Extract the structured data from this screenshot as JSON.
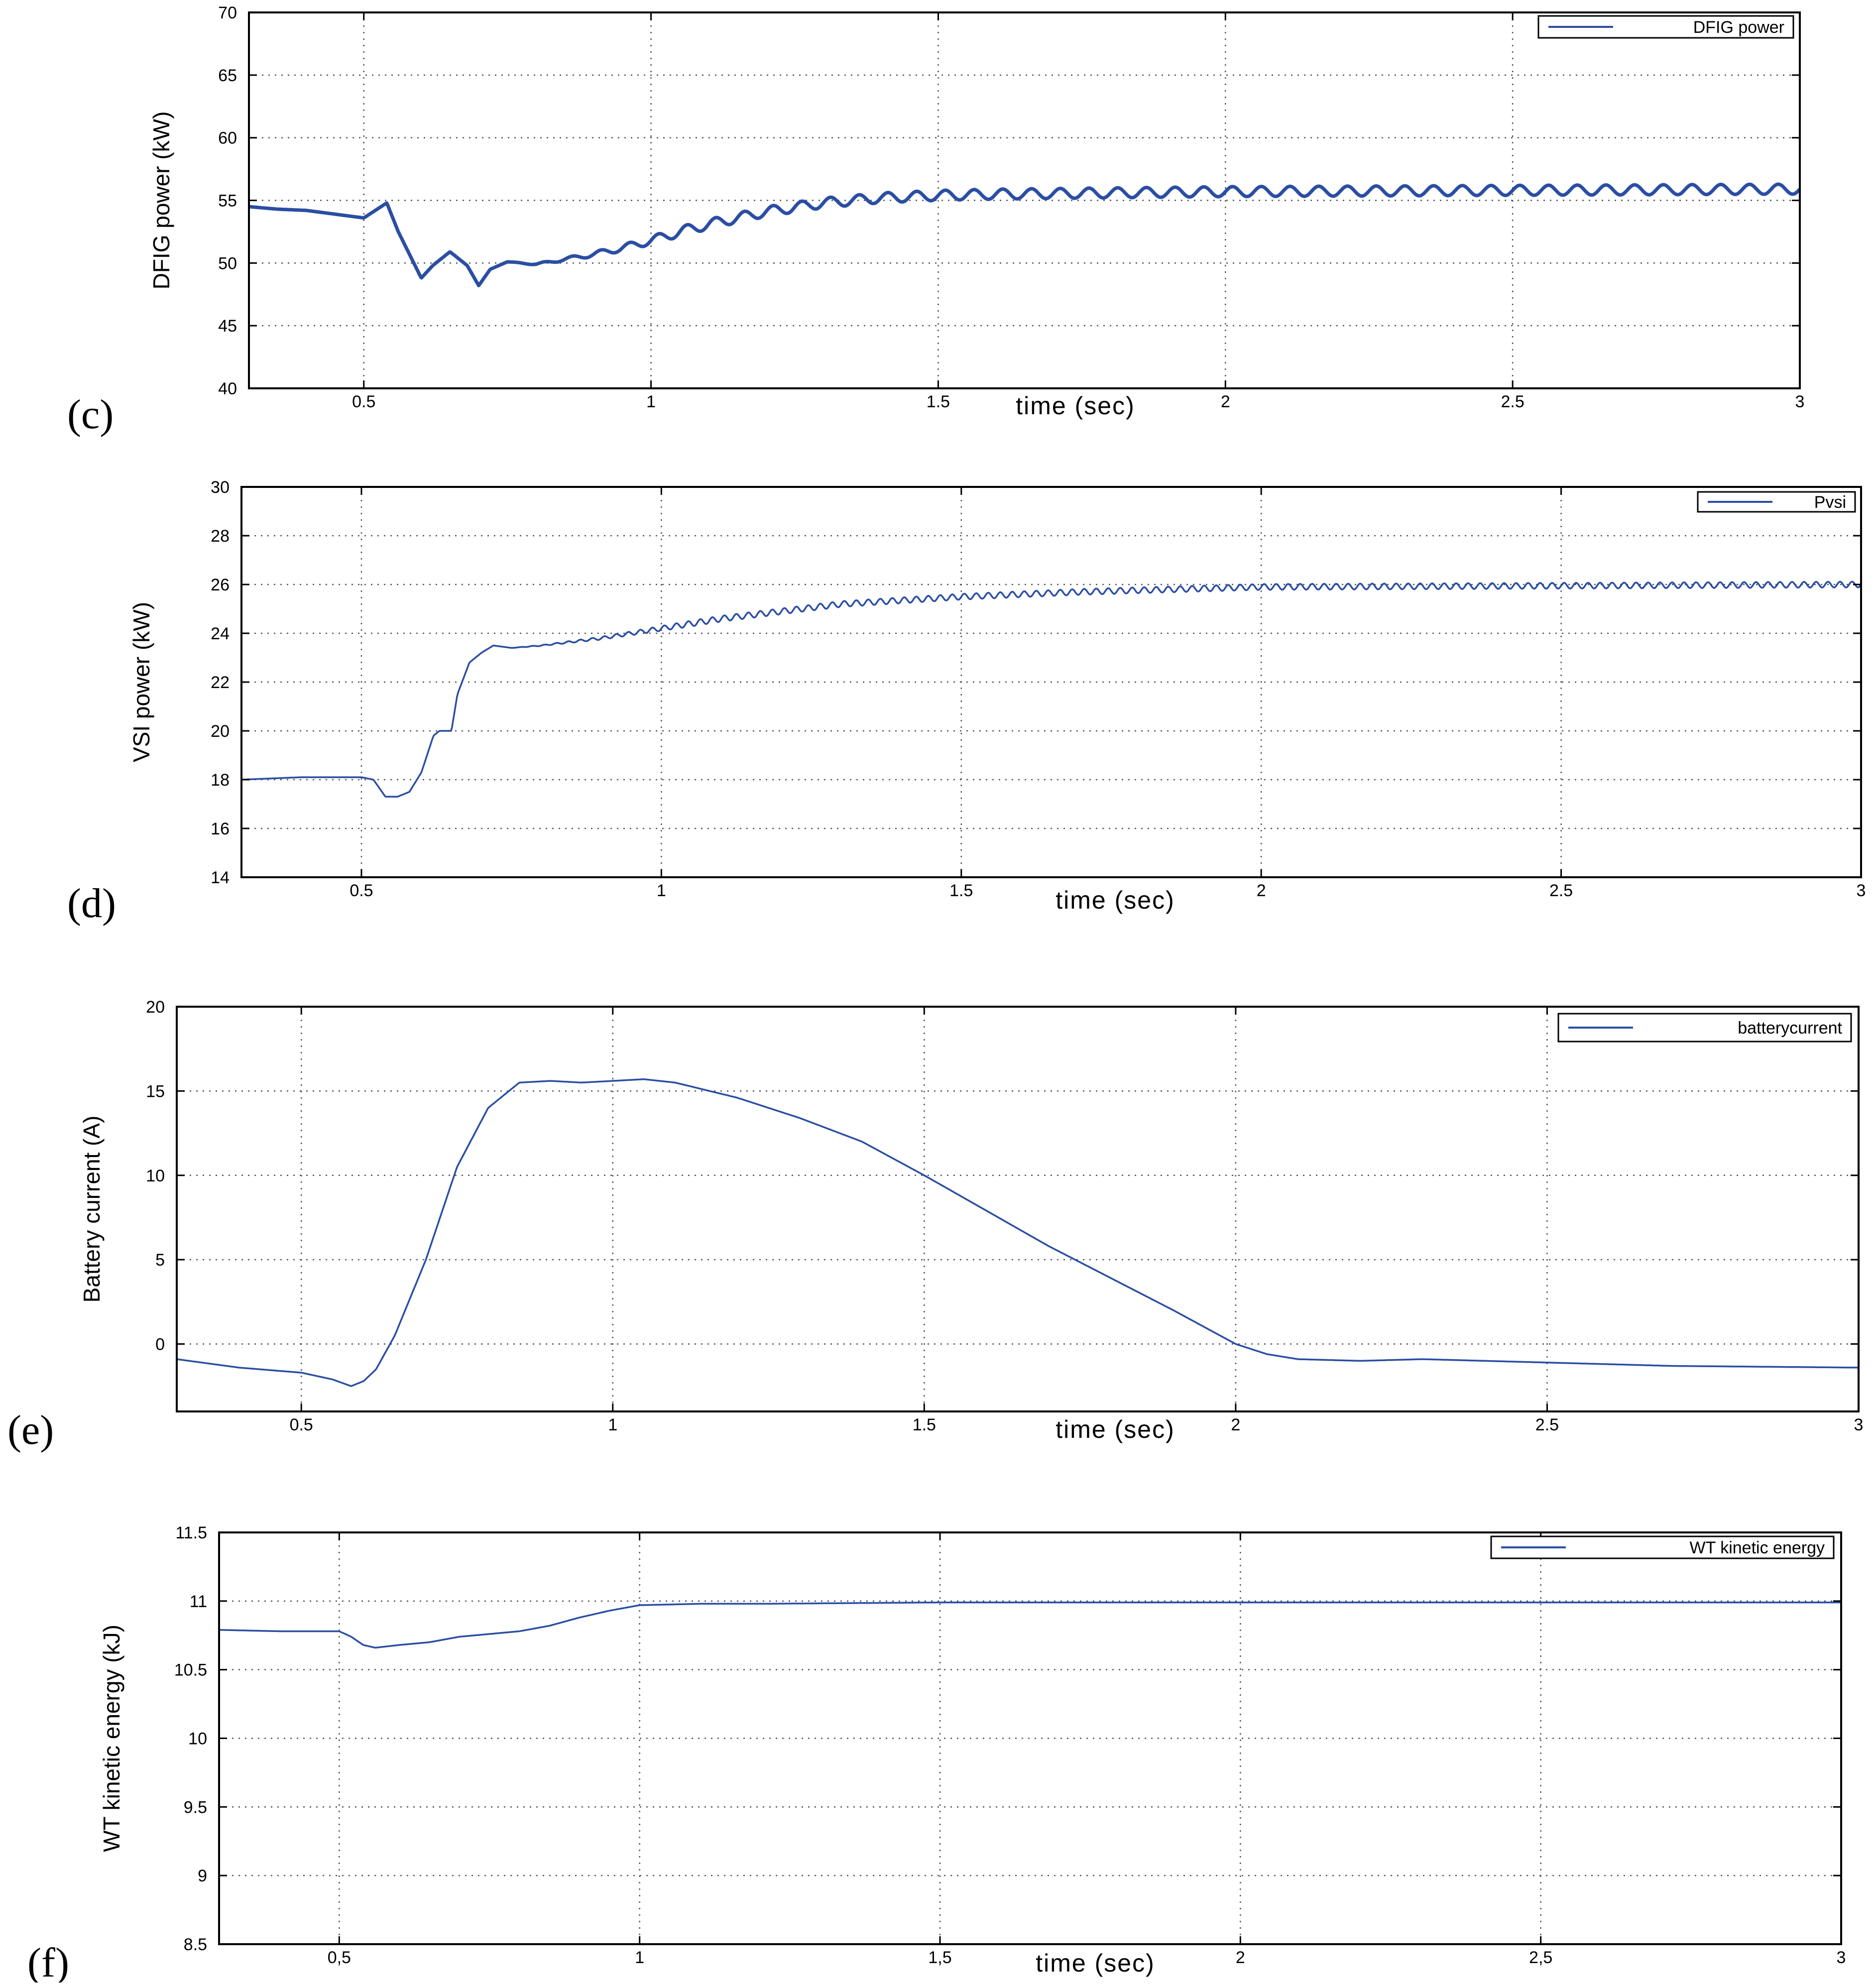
{
  "chart_data": [
    {
      "type": "line",
      "panel_label": "(c)",
      "xlabel": "time (sec)",
      "ylabel": "DFIG power (kW)",
      "xlim": [
        0.3,
        3
      ],
      "ylim": [
        40,
        70
      ],
      "x_ticks": [
        "0.5",
        "1",
        "1.5",
        "2",
        "2.5",
        "3"
      ],
      "x_tick_values": [
        0.5,
        1,
        1.5,
        2,
        2.5,
        3
      ],
      "y_ticks": [
        "40",
        "45",
        "50",
        "55",
        "60",
        "65",
        "70"
      ],
      "y_tick_values": [
        40,
        45,
        50,
        55,
        60,
        65,
        70
      ],
      "grid": true,
      "legend": "top-right",
      "series": [
        {
          "name": "DFIG power",
          "color": "#2b4ea3",
          "line_weight": "thick",
          "ripple_amplitude": 0.4,
          "ripple_period": 0.05,
          "x": [
            0.3,
            0.35,
            0.4,
            0.45,
            0.5,
            0.52,
            0.54,
            0.56,
            0.6,
            0.62,
            0.65,
            0.68,
            0.7,
            0.72,
            0.75,
            0.8,
            0.85,
            0.9,
            0.95,
            1.0,
            1.05,
            1.1,
            1.2,
            1.3,
            1.4,
            1.5,
            1.6,
            1.8,
            2.0,
            2.5,
            3.0
          ],
          "y": [
            54.5,
            54.3,
            54.2,
            53.9,
            53.6,
            54.2,
            54.8,
            52.5,
            48.8,
            49.8,
            50.9,
            49.8,
            48.2,
            49.5,
            50.1,
            49.9,
            50.3,
            50.7,
            51.2,
            51.8,
            52.5,
            53.1,
            54.1,
            54.8,
            55.2,
            55.4,
            55.5,
            55.6,
            55.7,
            55.8,
            55.9
          ]
        }
      ]
    },
    {
      "type": "line",
      "panel_label": "(d)",
      "xlabel": "time (sec)",
      "ylabel": "VSI power (kW)",
      "xlim": [
        0.3,
        3
      ],
      "ylim": [
        14,
        30
      ],
      "x_ticks": [
        "0.5",
        "1",
        "1.5",
        "2",
        "2.5",
        "3"
      ],
      "x_tick_values": [
        0.5,
        1,
        1.5,
        2,
        2.5,
        3
      ],
      "y_ticks": [
        "14",
        "16",
        "18",
        "20",
        "22",
        "24",
        "26",
        "28",
        "30"
      ],
      "y_tick_values": [
        14,
        16,
        18,
        20,
        22,
        24,
        26,
        28,
        30
      ],
      "grid": true,
      "legend": "top-right",
      "series": [
        {
          "name": "Pvsi",
          "color": "#2b4ea3",
          "line_weight": "thin",
          "ripple_amplitude": 0.12,
          "ripple_period": 0.02,
          "x": [
            0.3,
            0.4,
            0.5,
            0.52,
            0.54,
            0.56,
            0.58,
            0.6,
            0.62,
            0.63,
            0.64,
            0.65,
            0.66,
            0.68,
            0.7,
            0.72,
            0.75,
            0.8,
            0.9,
            1.0,
            1.1,
            1.2,
            1.3,
            1.5,
            1.7,
            2.0,
            2.5,
            3.0
          ],
          "y": [
            18.0,
            18.1,
            18.1,
            18.0,
            17.3,
            17.3,
            17.5,
            18.3,
            19.8,
            20.0,
            20.0,
            20.0,
            21.5,
            22.8,
            23.2,
            23.5,
            23.4,
            23.5,
            23.8,
            24.2,
            24.6,
            24.9,
            25.2,
            25.5,
            25.7,
            25.9,
            25.95,
            26.0
          ]
        }
      ]
    },
    {
      "type": "line",
      "panel_label": "(e)",
      "xlabel": "time (sec)",
      "ylabel": "Battery current (A)",
      "xlim": [
        0.3,
        3
      ],
      "ylim": [
        -4,
        20
      ],
      "x_ticks": [
        "0.5",
        "1",
        "1.5",
        "2",
        "2.5",
        "3"
      ],
      "x_tick_values": [
        0.5,
        1,
        1.5,
        2,
        2.5,
        3
      ],
      "y_ticks": [
        "0",
        "5",
        "10",
        "15",
        "20"
      ],
      "y_tick_values": [
        0,
        5,
        10,
        15,
        20
      ],
      "grid": true,
      "legend": "top-right",
      "series": [
        {
          "name": "batterycurrent",
          "color": "#2b4ea3",
          "line_weight": "thin",
          "ripple_amplitude": 0,
          "ripple_period": 0.05,
          "x": [
            0.3,
            0.4,
            0.5,
            0.55,
            0.58,
            0.6,
            0.62,
            0.65,
            0.7,
            0.75,
            0.8,
            0.85,
            0.9,
            0.95,
            1.0,
            1.05,
            1.1,
            1.2,
            1.3,
            1.4,
            1.5,
            1.6,
            1.7,
            1.8,
            1.9,
            2.0,
            2.05,
            2.1,
            2.2,
            2.3,
            2.5,
            2.7,
            3.0
          ],
          "y": [
            -0.9,
            -1.4,
            -1.7,
            -2.1,
            -2.5,
            -2.2,
            -1.5,
            0.5,
            5.0,
            10.5,
            14.0,
            15.5,
            15.6,
            15.5,
            15.6,
            15.7,
            15.5,
            14.6,
            13.4,
            12.0,
            10.0,
            7.9,
            5.8,
            3.9,
            2.0,
            0.0,
            -0.6,
            -0.9,
            -1.0,
            -0.9,
            -1.1,
            -1.3,
            -1.4
          ]
        }
      ]
    },
    {
      "type": "line",
      "panel_label": "(f)",
      "xlabel": "time (sec)",
      "ylabel": "WT kinetic energy (kJ)",
      "xlim": [
        0.3,
        3
      ],
      "ylim": [
        8.5,
        11.5
      ],
      "x_ticks": [
        "0,5",
        "1",
        "1,5",
        "2",
        "2,5",
        "3"
      ],
      "x_tick_values": [
        0.5,
        1,
        1.5,
        2,
        2.5,
        3
      ],
      "y_ticks": [
        "8.5",
        "9",
        "9.5",
        "10",
        "10.5",
        "11",
        "11.5"
      ],
      "y_tick_values": [
        8.5,
        9,
        9.5,
        10,
        10.5,
        11,
        11.5
      ],
      "grid": true,
      "legend": "top-right",
      "series": [
        {
          "name": "WT kinetic energy",
          "color": "#2b4ea3",
          "line_weight": "thin",
          "ripple_amplitude": 0,
          "ripple_period": 0.05,
          "x": [
            0.3,
            0.4,
            0.5,
            0.52,
            0.54,
            0.56,
            0.6,
            0.65,
            0.7,
            0.75,
            0.8,
            0.85,
            0.9,
            0.95,
            1.0,
            1.1,
            1.2,
            1.5,
            2.0,
            2.5,
            3.0
          ],
          "y": [
            10.79,
            10.78,
            10.78,
            10.74,
            10.68,
            10.66,
            10.68,
            10.7,
            10.74,
            10.76,
            10.78,
            10.82,
            10.88,
            10.93,
            10.97,
            10.98,
            10.98,
            10.99,
            10.99,
            10.99,
            10.99
          ]
        }
      ]
    }
  ]
}
